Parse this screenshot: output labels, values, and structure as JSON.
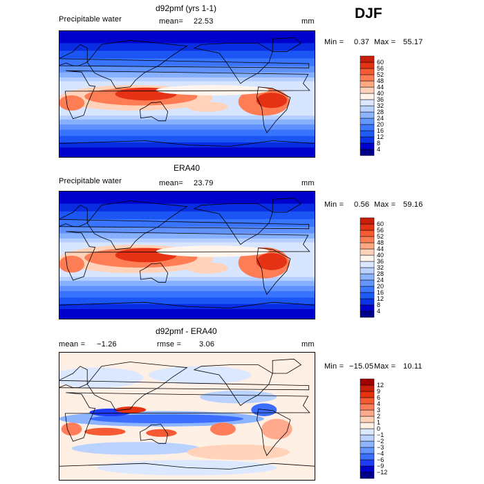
{
  "season": "DJF",
  "colors": {
    "precip_scale": [
      "#00008b",
      "#0000cd",
      "#0a32e6",
      "#1e5af5",
      "#3c78ff",
      "#6496ff",
      "#8cb4ff",
      "#b9d2ff",
      "#dce8ff",
      "#fff5ec",
      "#ffd2b9",
      "#ffa882",
      "#ff7d55",
      "#f55a32",
      "#e63214",
      "#c81e0a",
      "#a00000"
    ],
    "diff_scale": [
      "#00008b",
      "#0000cd",
      "#1e3cf5",
      "#3c6eff",
      "#6496ff",
      "#8cb4ff",
      "#b9d2ff",
      "#dce8ff",
      "#fff0e6",
      "#ffd2b9",
      "#ffaa8c",
      "#ff7d5a",
      "#f55a32",
      "#e6320f",
      "#c81e0a",
      "#a00000"
    ]
  },
  "chart_data": [
    {
      "type": "heatmap",
      "title": "d92pmf (yrs 1-1)",
      "variable_label": "Precipitable water",
      "mean_label": "mean=",
      "mean_value": "22.53",
      "units": "mm",
      "min_label": "Min =",
      "min_value": "0.37",
      "max_label": "Max =",
      "max_value": "55.17",
      "colorbar_levels": [
        "4",
        "8",
        "12",
        "16",
        "20",
        "24",
        "28",
        "32",
        "36",
        "40",
        "44",
        "48",
        "52",
        "56",
        "60"
      ]
    },
    {
      "type": "heatmap",
      "title": "ERA40",
      "variable_label": "Precipitable water",
      "mean_label": "mean=",
      "mean_value": "23.79",
      "units": "mm",
      "min_label": "Min =",
      "min_value": "0.56",
      "max_label": "Max =",
      "max_value": "59.16",
      "colorbar_levels": [
        "4",
        "8",
        "12",
        "16",
        "20",
        "24",
        "28",
        "32",
        "36",
        "40",
        "44",
        "48",
        "52",
        "56",
        "60"
      ]
    },
    {
      "type": "heatmap",
      "title": "d92pmf - ERA40",
      "variable_label": "",
      "mean_label": "mean =",
      "mean_value": "−1.26",
      "rmse_label": "rmse =",
      "rmse_value": "3.06",
      "units": "mm",
      "min_label": "Min =",
      "min_value": "−15.05",
      "max_label": "Max =",
      "max_value": "10.11",
      "colorbar_levels": [
        "−12",
        "−9",
        "−6",
        "−4",
        "−3",
        "−2",
        "−1",
        "0",
        "1",
        "2",
        "3",
        "4",
        "6",
        "9",
        "12"
      ]
    }
  ]
}
